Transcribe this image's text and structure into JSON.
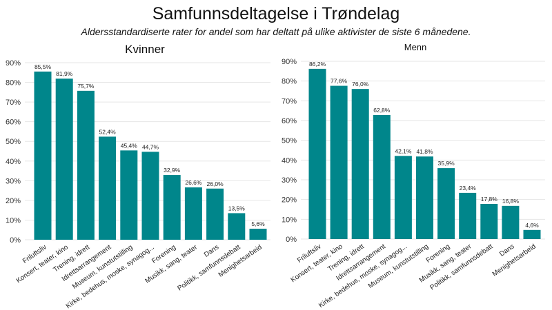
{
  "title": "Samfunnsdeltagelse i Trøndelag",
  "subtitle": "Aldersstandardiserte rater for andel som har deltatt på ulike aktivister de siste 6 månedene.",
  "colors": {
    "bar": "#00868B"
  },
  "chart_data": [
    {
      "type": "bar",
      "title": "Kvinner",
      "ylim": [
        0,
        90
      ],
      "yticks": [
        "0%",
        "10%",
        "20%",
        "30%",
        "40%",
        "50%",
        "60%",
        "70%",
        "80%",
        "90%"
      ],
      "categories": [
        "Friluftsliv",
        "Konsert, teater, kino",
        "Trening, idrett",
        "Idrettsarrangement",
        "Museum, kunstutstilling",
        "Kirke, bedehus, moske, synagog...",
        "Forening",
        "Musikk, sang, teater",
        "Dans",
        "Politikk, samfunnsdebatt",
        "Menighetsarbeid"
      ],
      "values": [
        85.5,
        81.9,
        75.7,
        52.4,
        45.4,
        44.7,
        32.9,
        26.6,
        26.0,
        13.5,
        5.6
      ],
      "labels": [
        "85,5%",
        "81,9%",
        "75,7%",
        "52,4%",
        "45,4%",
        "44,7%",
        "32,9%",
        "26,6%",
        "26,0%",
        "13,5%",
        "5,6%"
      ]
    },
    {
      "type": "bar",
      "title": "Menn",
      "ylim": [
        0,
        90
      ],
      "yticks": [
        "0%",
        "10%",
        "20%",
        "30%",
        "40%",
        "50%",
        "60%",
        "70%",
        "80%",
        "90%"
      ],
      "categories": [
        "Friluftsliv",
        "Konsert, teater, kino",
        "Trening, idrett",
        "Idrettsarrangement",
        "Kirke, bedehus, moske, synagog...",
        "Museum, kunstutstilling",
        "Forening",
        "Musikk, sang, teater",
        "Politikk, samfunnsdebatt",
        "Dans",
        "Menighetsarbeid"
      ],
      "values": [
        86.2,
        77.6,
        76.0,
        62.8,
        42.1,
        41.8,
        35.9,
        23.4,
        17.8,
        16.8,
        4.6
      ],
      "labels": [
        "86,2%",
        "77,6%",
        "76,0%",
        "62,8%",
        "42,1%",
        "41,8%",
        "35,9%",
        "23,4%",
        "17,8%",
        "16,8%",
        "4,6%"
      ]
    }
  ]
}
